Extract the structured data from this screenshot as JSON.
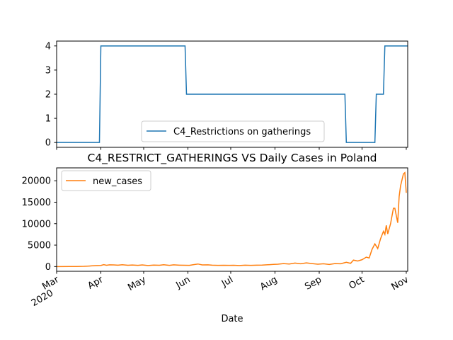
{
  "chart_data": [
    {
      "type": "line",
      "title": "",
      "xlabel": "",
      "ylabel": "",
      "ylim": [
        -0.2,
        4.2
      ],
      "yticks": [
        0,
        1,
        2,
        3,
        4
      ],
      "legend_position": "lower-center",
      "series": [
        {
          "name": "C4_Restrictions on gatherings",
          "color": "#1f77b4",
          "points": [
            [
              "2020-03-01",
              0
            ],
            [
              "2020-03-31",
              0
            ],
            [
              "2020-04-01",
              4
            ],
            [
              "2020-05-30",
              4
            ],
            [
              "2020-05-31",
              2
            ],
            [
              "2020-09-19",
              2
            ],
            [
              "2020-09-20",
              0
            ],
            [
              "2020-10-10",
              0
            ],
            [
              "2020-10-11",
              2
            ],
            [
              "2020-10-16",
              2
            ],
            [
              "2020-10-17",
              4
            ],
            [
              "2020-11-02",
              4
            ]
          ]
        }
      ]
    },
    {
      "type": "line",
      "title": "C4_RESTRICT_GATHERINGS VS Daily Cases in Poland",
      "xlabel": "Date",
      "ylabel": "",
      "ylim": [
        -1100,
        23000
      ],
      "yticks": [
        0,
        5000,
        10000,
        15000,
        20000
      ],
      "legend_position": "upper-left",
      "x_range": [
        "2020-03-01",
        "2020-11-02"
      ],
      "x_ticks": [
        {
          "date": "2020-03-01",
          "label": "Mar",
          "sublabel": "2020"
        },
        {
          "date": "2020-04-01",
          "label": "Apr"
        },
        {
          "date": "2020-05-01",
          "label": "May"
        },
        {
          "date": "2020-06-01",
          "label": "Jun"
        },
        {
          "date": "2020-07-01",
          "label": "Jul"
        },
        {
          "date": "2020-08-01",
          "label": "Aug"
        },
        {
          "date": "2020-09-01",
          "label": "Sep"
        },
        {
          "date": "2020-10-01",
          "label": "Oct"
        },
        {
          "date": "2020-11-01",
          "label": "Nov"
        }
      ],
      "series": [
        {
          "name": "new_cases",
          "color": "#ff7f0e",
          "points": [
            [
              "2020-03-01",
              0
            ],
            [
              "2020-03-10",
              5
            ],
            [
              "2020-03-15",
              20
            ],
            [
              "2020-03-20",
              50
            ],
            [
              "2020-03-25",
              150
            ],
            [
              "2020-03-28",
              230
            ],
            [
              "2020-04-01",
              260
            ],
            [
              "2020-04-03",
              450
            ],
            [
              "2020-04-05",
              300
            ],
            [
              "2020-04-07",
              400
            ],
            [
              "2020-04-10",
              380
            ],
            [
              "2020-04-13",
              320
            ],
            [
              "2020-04-16",
              420
            ],
            [
              "2020-04-20",
              300
            ],
            [
              "2020-04-23",
              360
            ],
            [
              "2020-04-27",
              280
            ],
            [
              "2020-04-30",
              380
            ],
            [
              "2020-05-04",
              250
            ],
            [
              "2020-05-08",
              350
            ],
            [
              "2020-05-12",
              300
            ],
            [
              "2020-05-15",
              420
            ],
            [
              "2020-05-19",
              280
            ],
            [
              "2020-05-22",
              400
            ],
            [
              "2020-05-26",
              330
            ],
            [
              "2020-05-30",
              300
            ],
            [
              "2020-06-02",
              280
            ],
            [
              "2020-06-05",
              450
            ],
            [
              "2020-06-08",
              600
            ],
            [
              "2020-06-11",
              380
            ],
            [
              "2020-06-15",
              400
            ],
            [
              "2020-06-18",
              320
            ],
            [
              "2020-06-22",
              280
            ],
            [
              "2020-06-26",
              300
            ],
            [
              "2020-06-30",
              290
            ],
            [
              "2020-07-03",
              300
            ],
            [
              "2020-07-07",
              250
            ],
            [
              "2020-07-11",
              320
            ],
            [
              "2020-07-15",
              280
            ],
            [
              "2020-07-19",
              330
            ],
            [
              "2020-07-23",
              350
            ],
            [
              "2020-07-27",
              420
            ],
            [
              "2020-07-31",
              500
            ],
            [
              "2020-08-03",
              550
            ],
            [
              "2020-08-07",
              700
            ],
            [
              "2020-08-11",
              600
            ],
            [
              "2020-08-15",
              820
            ],
            [
              "2020-08-19",
              650
            ],
            [
              "2020-08-23",
              850
            ],
            [
              "2020-08-27",
              700
            ],
            [
              "2020-08-31",
              550
            ],
            [
              "2020-09-04",
              650
            ],
            [
              "2020-09-08",
              500
            ],
            [
              "2020-09-12",
              700
            ],
            [
              "2020-09-16",
              650
            ],
            [
              "2020-09-20",
              1000
            ],
            [
              "2020-09-23",
              750
            ],
            [
              "2020-09-25",
              1500
            ],
            [
              "2020-09-28",
              1300
            ],
            [
              "2020-10-01",
              1600
            ],
            [
              "2020-10-04",
              2200
            ],
            [
              "2020-10-06",
              2000
            ],
            [
              "2020-10-08",
              4000
            ],
            [
              "2020-10-10",
              5300
            ],
            [
              "2020-10-12",
              4200
            ],
            [
              "2020-10-14",
              6500
            ],
            [
              "2020-10-16",
              8200
            ],
            [
              "2020-10-17",
              7500
            ],
            [
              "2020-10-18",
              9600
            ],
            [
              "2020-10-19",
              7600
            ],
            [
              "2020-10-21",
              10000
            ],
            [
              "2020-10-23",
              13600
            ],
            [
              "2020-10-24",
              13600
            ],
            [
              "2020-10-26",
              10200
            ],
            [
              "2020-10-27",
              16300
            ],
            [
              "2020-10-28",
              18800
            ],
            [
              "2020-10-30",
              21600
            ],
            [
              "2020-10-31",
              21900
            ],
            [
              "2020-11-01",
              17200
            ]
          ]
        }
      ]
    }
  ]
}
